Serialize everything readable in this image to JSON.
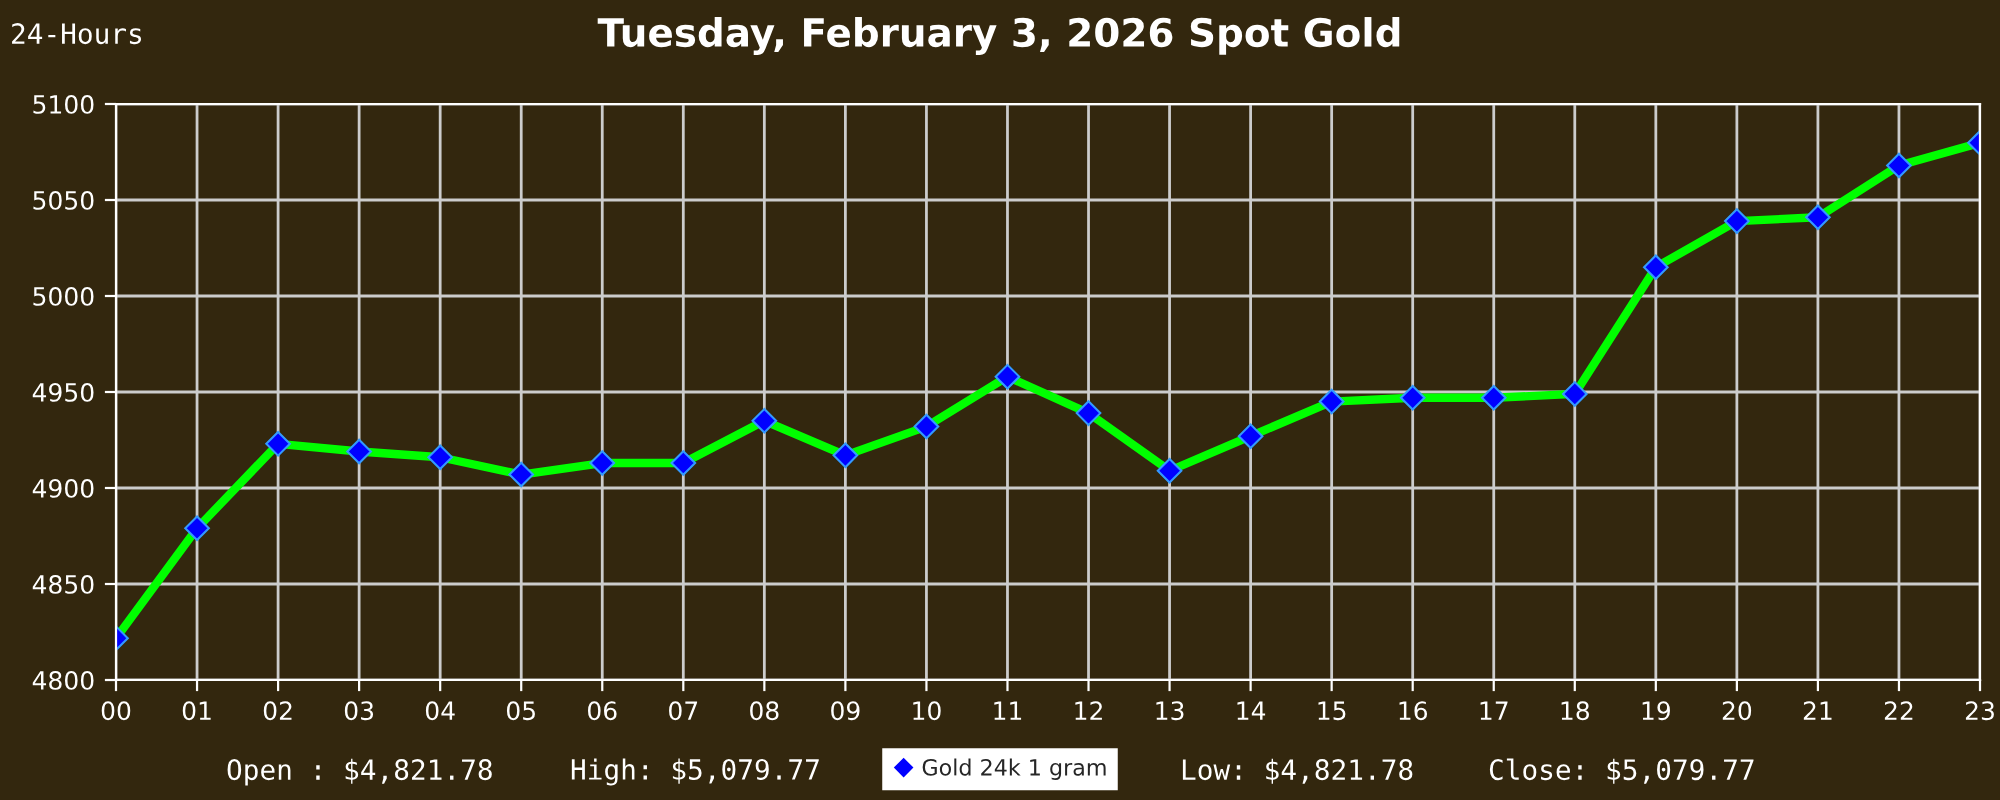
{
  "chart_data": {
    "type": "line",
    "title": "Tuesday, February 3, 2026 Spot Gold",
    "categories": [
      "00",
      "01",
      "02",
      "03",
      "04",
      "05",
      "06",
      "07",
      "08",
      "09",
      "10",
      "11",
      "12",
      "13",
      "14",
      "15",
      "16",
      "17",
      "18",
      "19",
      "20",
      "21",
      "22",
      "23"
    ],
    "series": [
      {
        "name": "Gold 24k 1 gram",
        "color": "#00ff00",
        "values": [
          4821.78,
          4879,
          4923,
          4919,
          4916,
          4907,
          4913,
          4913,
          4935,
          4917,
          4932,
          4958,
          4939,
          4909,
          4927,
          4945,
          4947,
          4947,
          4949,
          5015,
          5039,
          5041,
          5068,
          5079.77
        ]
      }
    ],
    "ylim": [
      4800,
      5100
    ],
    "yticks": [
      4800,
      4850,
      4900,
      4950,
      5000,
      5050,
      5100
    ],
    "grid": true,
    "legend": "bottom",
    "marker": "diamond",
    "line_style": "solid",
    "annotations": [
      "24-Hours",
      "Open : $4,821.78",
      "High: $5,079.77",
      "Low: $4,821.78",
      "Close: $5,079.77"
    ]
  }
}
